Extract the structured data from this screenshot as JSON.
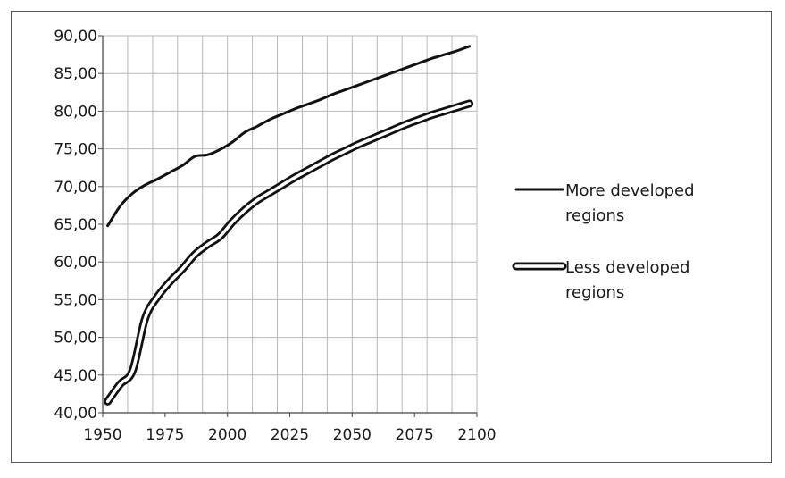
{
  "chart_data": {
    "type": "line",
    "title": "",
    "xlabel": "",
    "ylabel": "",
    "xlim": [
      1950,
      2100
    ],
    "ylim": [
      40,
      90
    ],
    "x_ticks": [
      1950,
      1975,
      2000,
      2025,
      2050,
      2075,
      2100
    ],
    "x_tick_labels": [
      "1950",
      "1975",
      "2000",
      "2025",
      "2050",
      "2075",
      "2100"
    ],
    "y_ticks": [
      40,
      45,
      50,
      55,
      60,
      65,
      70,
      75,
      80,
      85,
      90
    ],
    "y_tick_labels": [
      "40,00",
      "45,00",
      "50,00",
      "55,00",
      "60,00",
      "65,00",
      "70,00",
      "75,00",
      "80,00",
      "85,00",
      "90,00"
    ],
    "grid": true,
    "legend_position": "right",
    "series": [
      {
        "name": "More developed regions",
        "legend_lines": [
          "More developed",
          "regions"
        ],
        "style": "solid",
        "color": "#111111",
        "x": [
          1952,
          1957,
          1962,
          1967,
          1972,
          1977,
          1982,
          1987,
          1992,
          1997,
          2002,
          2007,
          2012,
          2017,
          2022,
          2027,
          2032,
          2037,
          2042,
          2047,
          2052,
          2057,
          2062,
          2067,
          2072,
          2077,
          2082,
          2087,
          2092,
          2097
        ],
        "y": [
          64.8,
          67.4,
          69.1,
          70.2,
          71.0,
          71.9,
          72.8,
          74.0,
          74.2,
          74.9,
          75.9,
          77.2,
          78.0,
          78.9,
          79.6,
          80.3,
          80.9,
          81.5,
          82.2,
          82.8,
          83.4,
          84.0,
          84.6,
          85.2,
          85.8,
          86.4,
          87.0,
          87.5,
          88.0,
          88.6
        ]
      },
      {
        "name": "Less developed regions",
        "legend_lines": [
          "Less developed",
          "regions"
        ],
        "style": "double-outline",
        "color": "#111111",
        "x": [
          1952,
          1957,
          1962,
          1967,
          1972,
          1977,
          1982,
          1987,
          1992,
          1997,
          2002,
          2007,
          2012,
          2017,
          2022,
          2027,
          2032,
          2037,
          2042,
          2047,
          2052,
          2057,
          2062,
          2067,
          2072,
          2077,
          2082,
          2087,
          2092,
          2097
        ],
        "y": [
          41.5,
          43.8,
          45.6,
          52.5,
          55.4,
          57.4,
          59.1,
          61.0,
          62.3,
          63.4,
          65.3,
          66.9,
          68.2,
          69.2,
          70.2,
          71.2,
          72.1,
          73.0,
          73.9,
          74.7,
          75.5,
          76.2,
          76.9,
          77.6,
          78.3,
          78.9,
          79.5,
          80.0,
          80.5,
          81.0
        ]
      }
    ]
  }
}
